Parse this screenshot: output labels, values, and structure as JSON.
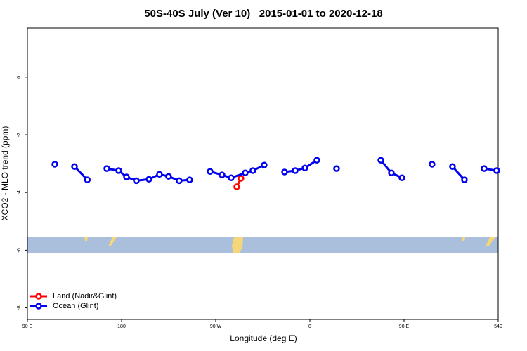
{
  "chart_data": {
    "type": "line",
    "title": "50S-40S July (Ver 10)   2015-01-01 to 2020-12-18",
    "x_label": "Longitude (deg E)",
    "y_label": "XCO2 - MLO trend (ppm)",
    "xlim": [
      90,
      540
    ],
    "xticks": [
      {
        "value": 90,
        "label": "90 E"
      },
      180,
      {
        "value": 270,
        "label": "90 W"
      },
      {
        "value": 360,
        "label": "0"
      },
      {
        "value": 450,
        "label": "90 E"
      },
      540
    ],
    "ylim": [
      -8.4,
      1.7
    ],
    "yticks": [
      0,
      -2,
      -4,
      -6,
      -8
    ],
    "legend_position": "bottom-left",
    "series": [
      {
        "name": "Land (Nadir&Glint)",
        "color": "#ff0000",
        "x": [
          290.1,
          294.1
        ],
        "values": [
          -3.8,
          -3.51
        ]
      },
      {
        "name": "Ocean (Glint)",
        "color": "#0000ee",
        "x": [
          116.2,
          null,
          135,
          147.3,
          null,
          165.9,
          177.3,
          184.7,
          194.1,
          206.2,
          216.2,
          224.9,
          235,
          245.1,
          null,
          264.6,
          276,
          284.7,
          298.2,
          305.5,
          316.3,
          null,
          335.8,
          345.9,
          355.3,
          366.7,
          null,
          385.5,
          null,
          427.8,
          437.9,
          448,
          null,
          476.8,
          null,
          496.3,
          507.7,
          null,
          526.5,
          538.6
        ],
        "values": [
          -3.02,
          null,
          -3.1,
          -3.56,
          null,
          -3.17,
          -3.24,
          -3.46,
          -3.59,
          -3.54,
          -3.37,
          -3.44,
          -3.59,
          -3.56,
          null,
          -3.27,
          -3.39,
          -3.49,
          -3.32,
          -3.24,
          -3.05,
          null,
          -3.29,
          -3.24,
          -3.15,
          -2.88,
          null,
          -3.17,
          null,
          -2.88,
          -3.32,
          -3.49,
          null,
          -3.02,
          null,
          -3.1,
          -3.56,
          null,
          -3.17,
          -3.24
        ]
      }
    ]
  }
}
